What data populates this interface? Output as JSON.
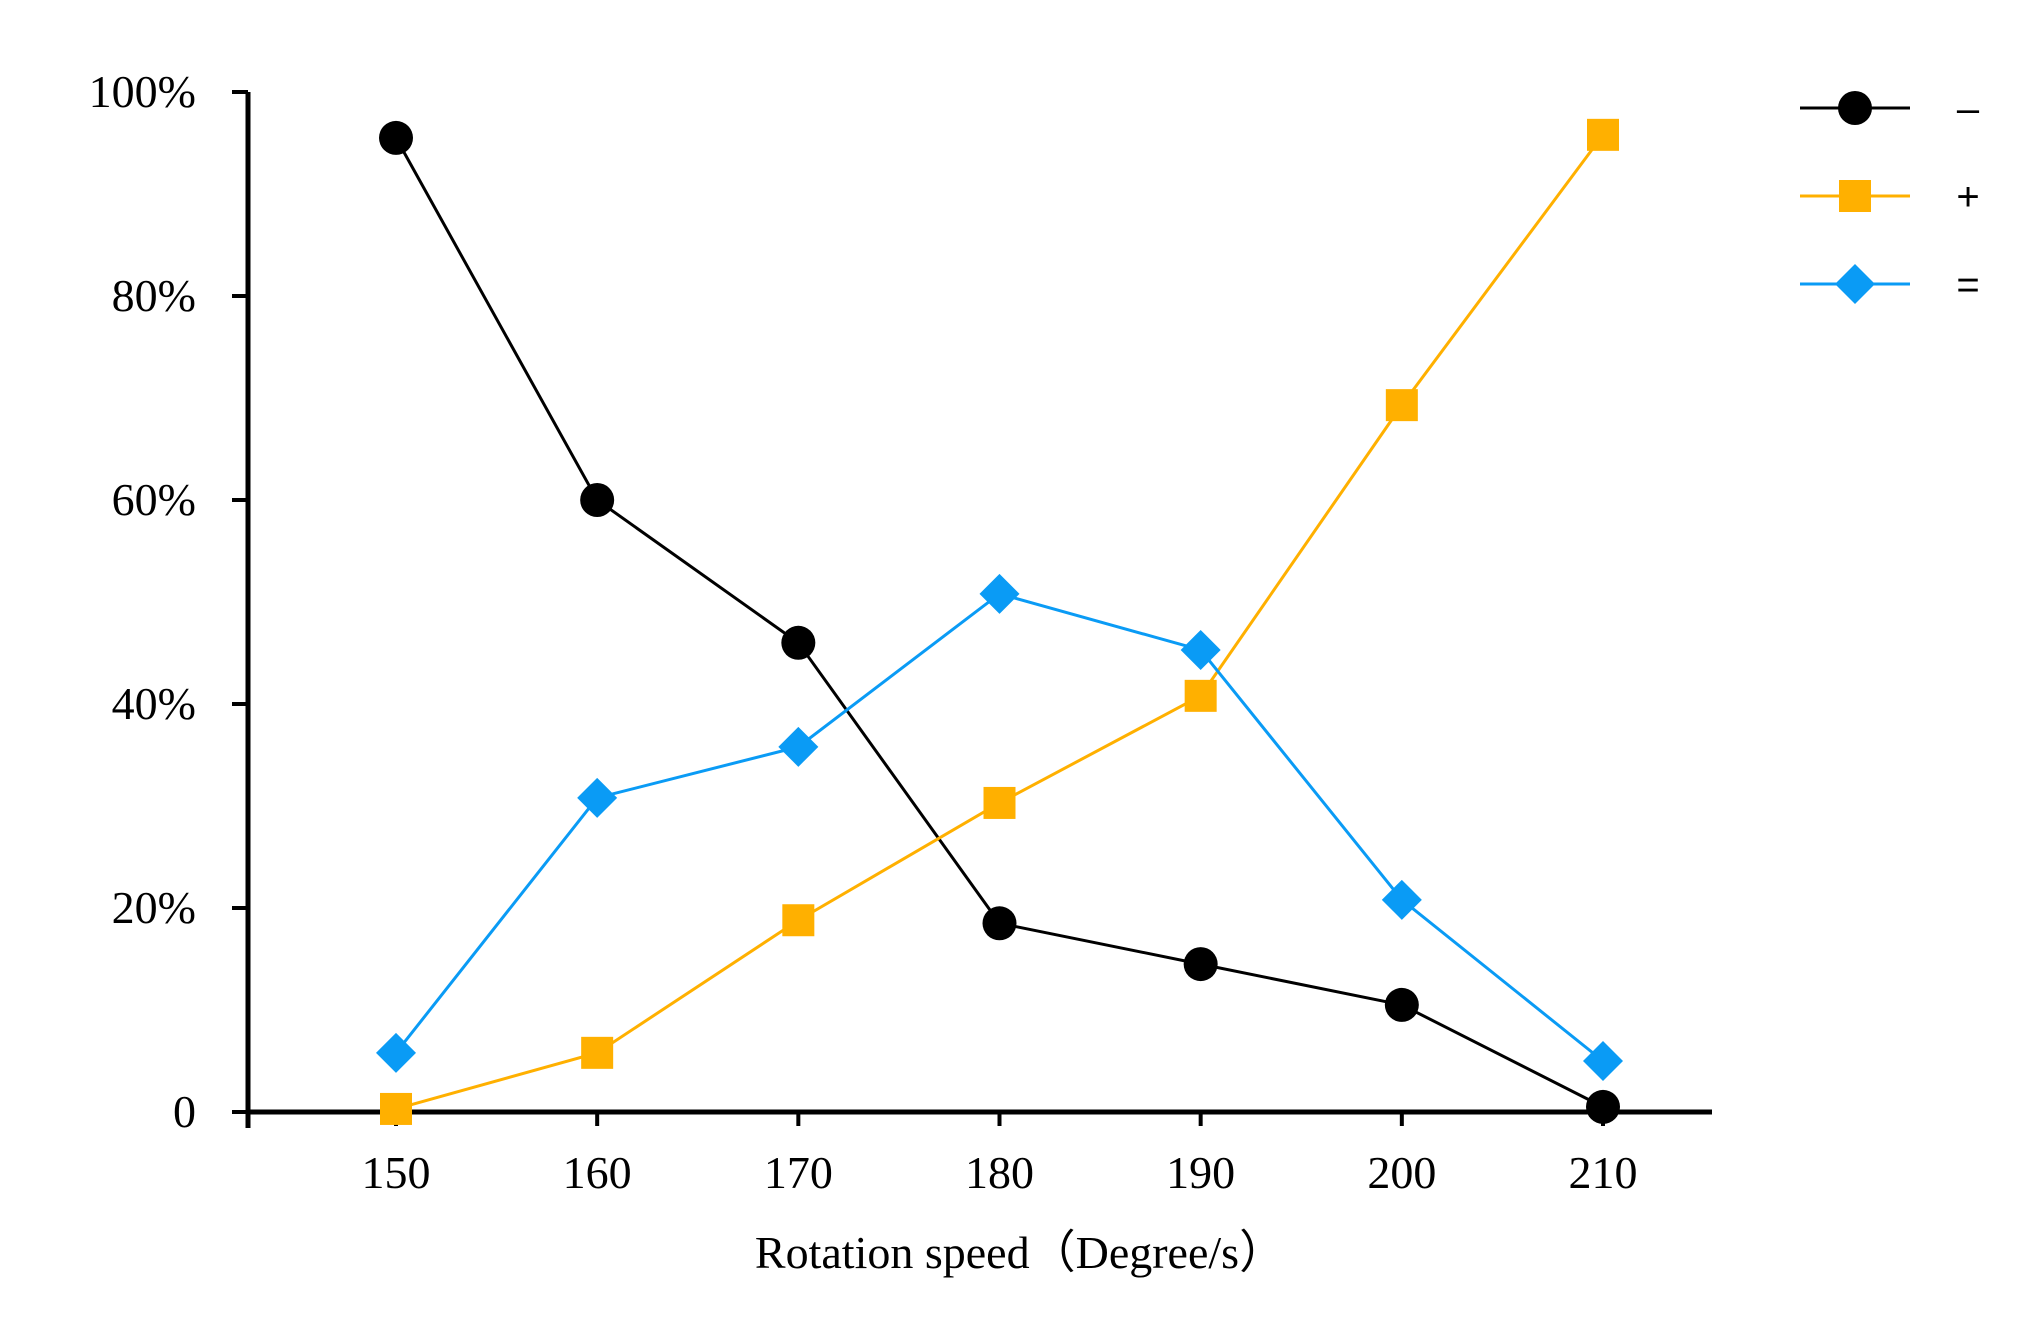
{
  "chart_data": {
    "type": "line",
    "x": [
      150,
      160,
      170,
      180,
      190,
      200,
      210
    ],
    "x_tick_labels": [
      "150",
      "160",
      "170",
      "180",
      "190",
      "200",
      "210"
    ],
    "xlim": [
      143,
      216
    ],
    "ylim": [
      0,
      100
    ],
    "y_ticks": [
      0,
      20,
      40,
      60,
      80,
      100
    ],
    "y_tick_labels": [
      "0",
      "20%",
      "40%",
      "60%",
      "80%",
      "100%"
    ],
    "xlabel": "Rotation speed（Degree/s）",
    "ylabel": "",
    "title": "",
    "grid": false,
    "legend_position": "top-right",
    "series": [
      {
        "name": "–",
        "marker": "circle",
        "color": "#000000",
        "values": [
          95.5,
          60,
          46,
          18.5,
          14.5,
          10.5,
          0.5
        ]
      },
      {
        "name": "+",
        "marker": "square",
        "color": "#FFB000",
        "values": [
          0.3,
          5.8,
          18.8,
          30.3,
          40.8,
          69.3,
          95.8
        ]
      },
      {
        "name": "=",
        "marker": "diamond",
        "color": "#0A9BF5",
        "values": [
          5.8,
          30.8,
          35.8,
          50.8,
          45.3,
          20.8,
          5.0
        ]
      }
    ]
  }
}
